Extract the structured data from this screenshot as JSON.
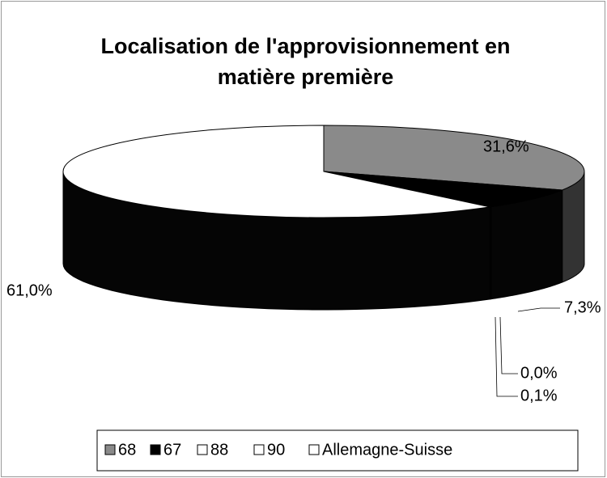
{
  "chart_data": {
    "type": "pie",
    "title": "Localisation de l'approvisionnement en matière première",
    "categories": [
      "68",
      "67",
      "88",
      "90",
      "Allemagne-Suisse"
    ],
    "values": [
      31.6,
      7.3,
      0.0,
      0.1,
      61.0
    ],
    "value_labels": [
      "31,6%",
      "7,3%",
      "0,0%",
      "0,1%",
      "61,0%"
    ],
    "colors": [
      "#8a8a8a",
      "#000000",
      "#ffffff",
      "#ffffff",
      "#ffffff"
    ],
    "legend": "bottom"
  }
}
